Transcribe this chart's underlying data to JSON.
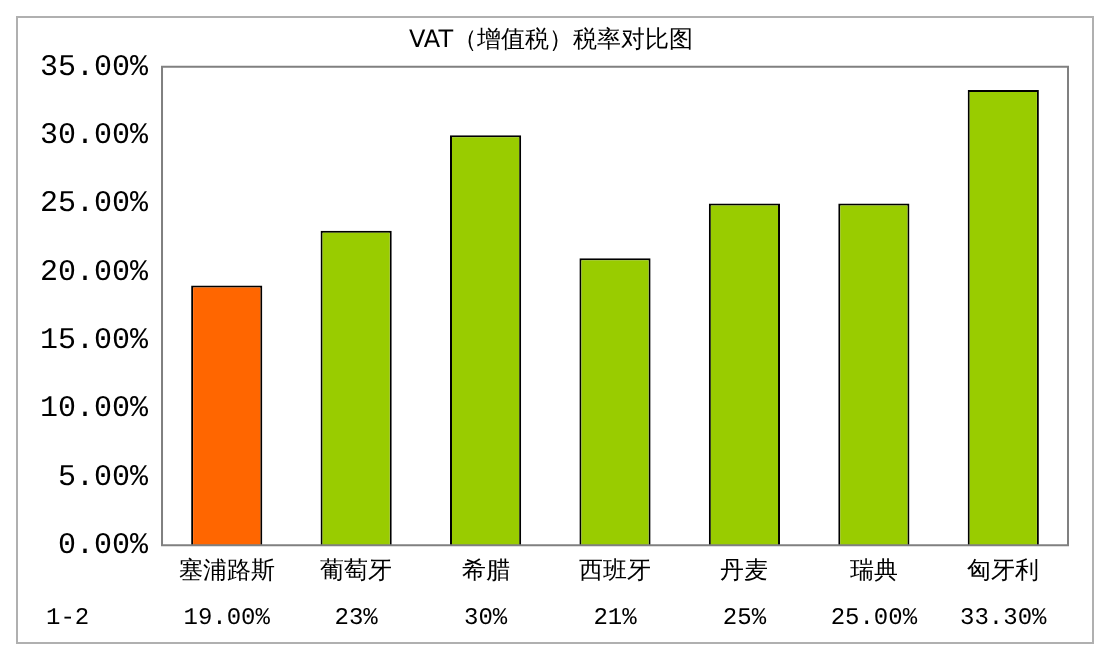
{
  "chart_data": {
    "type": "bar",
    "title": "VAT（增值税）税率对比图",
    "categories": [
      "塞浦路斯",
      "葡萄牙",
      "希腊",
      "西班牙",
      "丹麦",
      "瑞典",
      "匈牙利"
    ],
    "series": [
      {
        "name": "1-2",
        "colors": [
          "#ff6600",
          "#99cc00",
          "#99cc00",
          "#99cc00",
          "#99cc00",
          "#99cc00",
          "#99cc00"
        ],
        "values": [
          19,
          23,
          30,
          21,
          25,
          25,
          33.3
        ],
        "value_labels": [
          "19.00%",
          "23%",
          "30%",
          "21%",
          "25%",
          "25.00%",
          "33.30%"
        ]
      }
    ],
    "ylim": [
      0,
      35
    ],
    "yticks": [
      {
        "value": 0,
        "label": "0.00%"
      },
      {
        "value": 5,
        "label": "5.00%"
      },
      {
        "value": 10,
        "label": "10.00%"
      },
      {
        "value": 15,
        "label": "15.00%"
      },
      {
        "value": 20,
        "label": "20.00%"
      },
      {
        "value": 25,
        "label": "25.00%"
      },
      {
        "value": 30,
        "label": "30.00%"
      },
      {
        "value": 35,
        "label": "35.00%"
      }
    ],
    "grid": false,
    "legend": false
  }
}
